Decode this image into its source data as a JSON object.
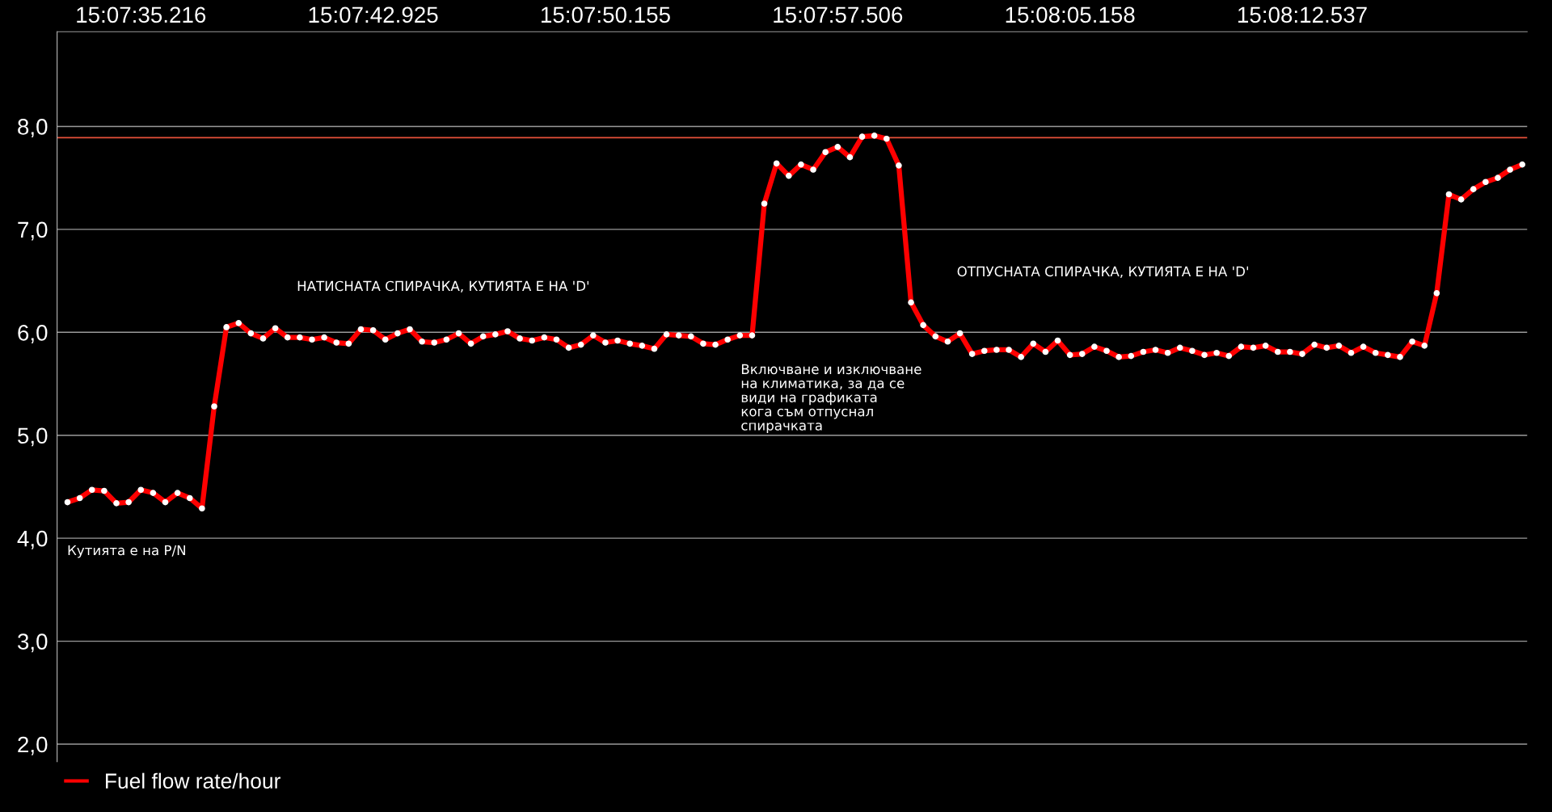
{
  "chart_data": {
    "type": "line",
    "categories": [
      null,
      null,
      null,
      null,
      null,
      null,
      "15:07:35.216",
      null,
      null,
      null,
      null,
      null,
      null,
      null,
      null,
      null,
      null,
      null,
      null,
      null,
      null,
      null,
      null,
      null,
      null,
      "15:07:42.925",
      null,
      null,
      null,
      null,
      null,
      null,
      null,
      null,
      null,
      null,
      null,
      null,
      null,
      null,
      null,
      null,
      null,
      null,
      "15:07:50.155",
      null,
      null,
      null,
      null,
      null,
      null,
      null,
      null,
      null,
      null,
      null,
      null,
      null,
      null,
      null,
      null,
      null,
      null,
      "15:07:57.506",
      null,
      null,
      null,
      null,
      null,
      null,
      null,
      null,
      null,
      null,
      null,
      null,
      null,
      null,
      null,
      null,
      null,
      null,
      "15:08:05.158",
      null,
      null,
      null,
      null,
      null,
      null,
      null,
      null,
      null,
      null,
      null,
      null,
      null,
      null,
      null,
      null,
      null,
      null,
      "15:08:12.537",
      null,
      null,
      null,
      null,
      null,
      null,
      null,
      null,
      null,
      null,
      null,
      null,
      null,
      null,
      null,
      null,
      null,
      null
    ],
    "series": [
      {
        "name": "Fuel flow rate/hour",
        "color": "#ff0000",
        "values": [
          4.35,
          4.39,
          4.47,
          4.46,
          4.34,
          4.35,
          4.47,
          4.44,
          4.35,
          4.44,
          4.39,
          4.29,
          5.28,
          6.05,
          6.09,
          5.99,
          5.94,
          6.04,
          5.95,
          5.95,
          5.93,
          5.95,
          5.9,
          5.89,
          6.03,
          6.02,
          5.93,
          5.99,
          6.03,
          5.91,
          5.9,
          5.93,
          5.99,
          5.89,
          5.96,
          5.98,
          6.01,
          5.94,
          5.92,
          5.95,
          5.93,
          5.85,
          5.88,
          5.97,
          5.9,
          5.92,
          5.89,
          5.87,
          5.84,
          5.98,
          5.97,
          5.96,
          5.89,
          5.88,
          5.93,
          5.97,
          5.97,
          7.25,
          7.64,
          7.52,
          7.63,
          7.58,
          7.75,
          7.8,
          7.7,
          7.9,
          7.91,
          7.88,
          7.62,
          6.29,
          6.07,
          5.96,
          5.91,
          5.99,
          5.79,
          5.82,
          5.83,
          5.83,
          5.76,
          5.89,
          5.81,
          5.92,
          5.78,
          5.79,
          5.86,
          5.82,
          5.76,
          5.77,
          5.81,
          5.83,
          5.8,
          5.85,
          5.82,
          5.78,
          5.8,
          5.77,
          5.86,
          5.85,
          5.87,
          5.81,
          5.81,
          5.79,
          5.88,
          5.85,
          5.87,
          5.8,
          5.86,
          5.8,
          5.78,
          5.76,
          5.91,
          5.87,
          6.38,
          7.34,
          7.29,
          7.39,
          7.46,
          7.5,
          7.58,
          7.63
        ]
      }
    ],
    "ylim": [
      1.83,
      8.92
    ],
    "yticks": [
      {
        "value": 2,
        "label": "2,0"
      },
      {
        "value": 3,
        "label": "3,0"
      },
      {
        "value": 4,
        "label": "4,0"
      },
      {
        "value": 5,
        "label": "5,0"
      },
      {
        "value": 6,
        "label": "6,0"
      },
      {
        "value": 7,
        "label": "7,0"
      },
      {
        "value": 8,
        "label": "8,0"
      }
    ],
    "ref_lines": [
      {
        "axis": "y",
        "value": 7.89,
        "label": null,
        "color": "#e8503a"
      }
    ],
    "annotations": [
      "НАТИСНАТА СПИРАЧКА, КУТИЯТА Е НА 'D'",
      "Включване и изключване\nна климатика, за да се\nвиди на графиката\nкога съм отпуснал\nспирачката",
      "ОТПУСНАТА СПИРАЧКА, КУТИЯТА Е НА 'D'",
      "Кутията е на P/N"
    ],
    "grid": "y",
    "legend": "bottom left",
    "marker": "circle",
    "line_style": "solid"
  }
}
